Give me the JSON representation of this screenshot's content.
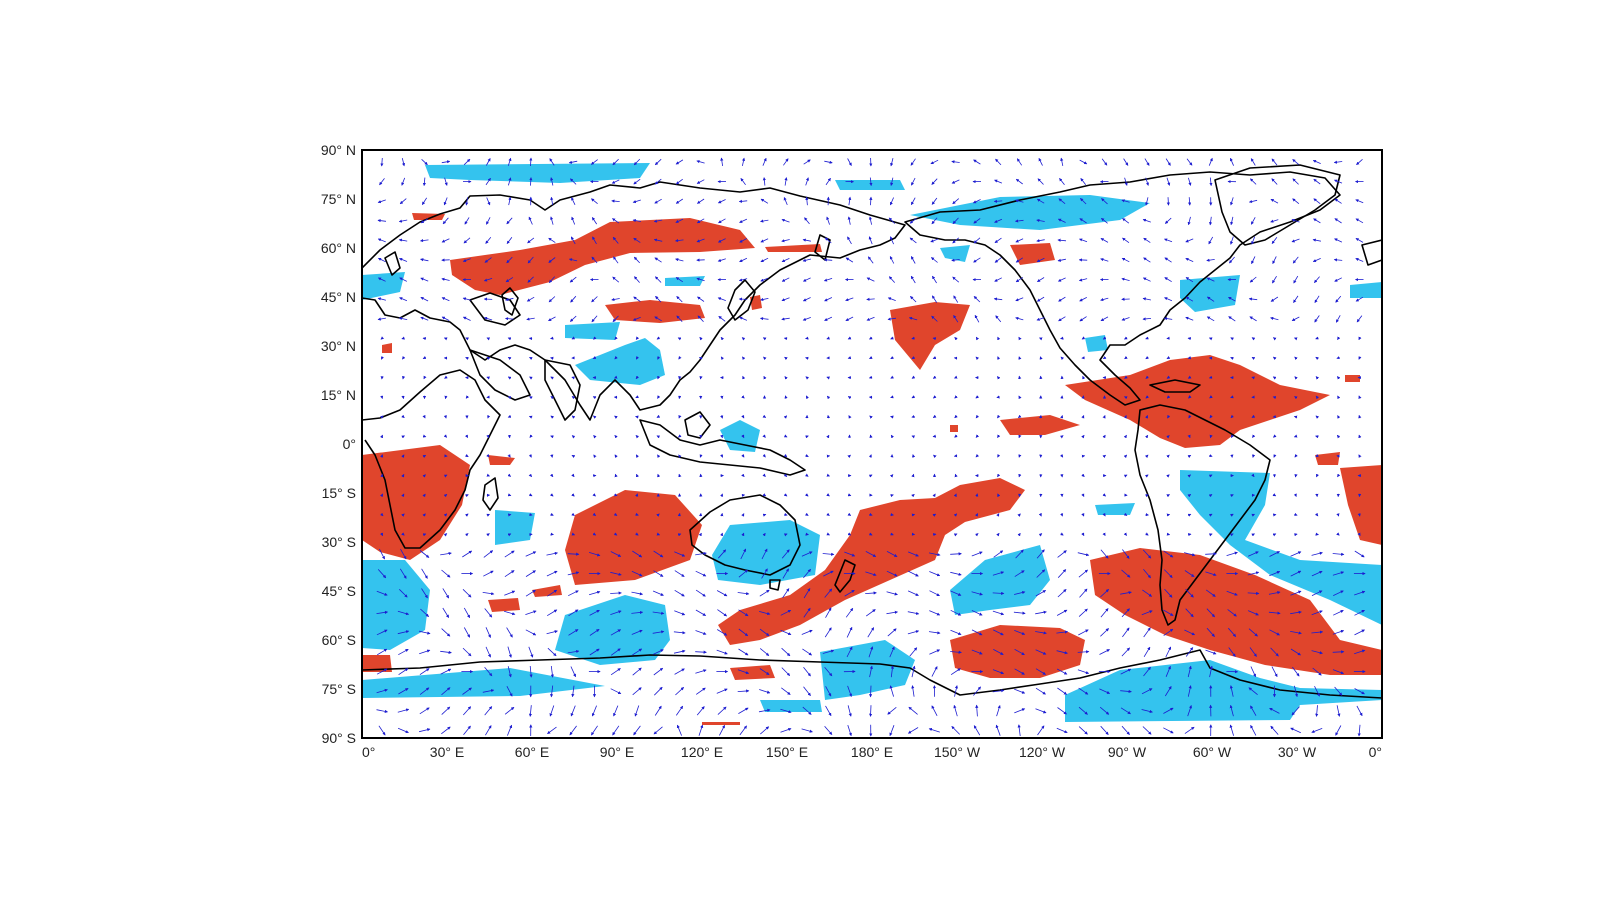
{
  "figure": {
    "title": "",
    "colors": {
      "positive": "#e0452c",
      "negative": "#34c3ee",
      "vectors": "#1c1cd0",
      "coast": "#000000",
      "frame": "#000000"
    }
  },
  "axes": {
    "lat_labels": [
      "90° N",
      "75° N",
      "60° N",
      "45° N",
      "30° N",
      "15° N",
      "0°",
      "15° S",
      "30° S",
      "45° S",
      "60° S",
      "75° S",
      "90° S"
    ],
    "lon_labels": [
      "0°",
      "30° E",
      "60° E",
      "90° E",
      "120° E",
      "150° E",
      "180° E",
      "150° W",
      "120° W",
      "90° W",
      "60° W",
      "30° W",
      "0°"
    ],
    "lon_range_deg_east": [
      0,
      360
    ],
    "lat_range": [
      -90,
      90
    ]
  },
  "legend": "none",
  "layers": [
    "coastlines",
    "positive anomaly shading",
    "negative anomaly shading",
    "wind vectors"
  ]
}
